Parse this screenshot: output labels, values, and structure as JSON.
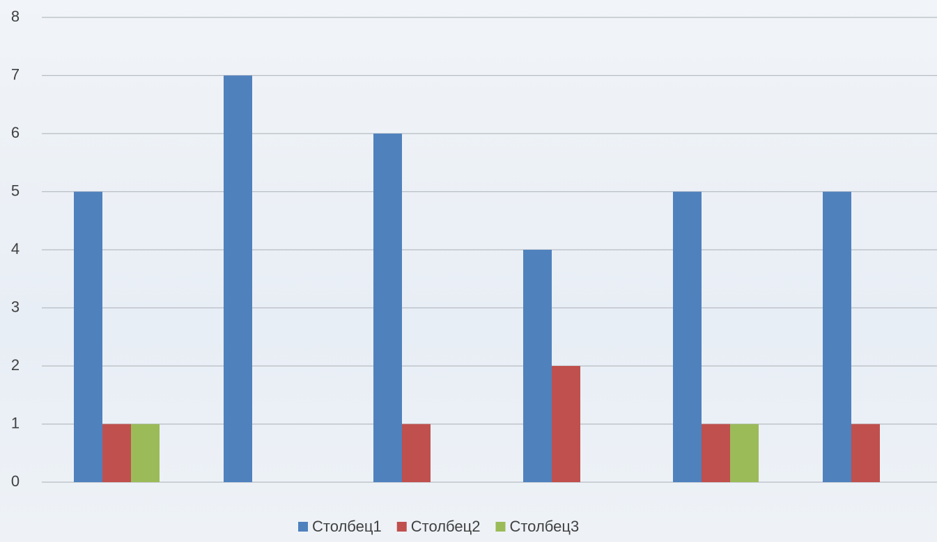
{
  "chart_data": {
    "type": "bar",
    "categories": [
      null,
      null,
      null,
      null,
      null,
      null
    ],
    "series": [
      {
        "name": "Столбец1",
        "color": "#4f81bd",
        "values": [
          5,
          7,
          6,
          4,
          5,
          5
        ]
      },
      {
        "name": "Столбец2",
        "color": "#c0504d",
        "values": [
          1,
          0,
          1,
          2,
          1,
          1
        ]
      },
      {
        "name": "Столбец3",
        "color": "#9bbb59",
        "values": [
          1,
          0,
          0,
          0,
          1,
          0
        ]
      }
    ],
    "ylim": [
      0,
      8
    ],
    "yticks": [
      0,
      1,
      2,
      3,
      4,
      5,
      6,
      7,
      8
    ],
    "grid": true,
    "legend": "bottom"
  }
}
